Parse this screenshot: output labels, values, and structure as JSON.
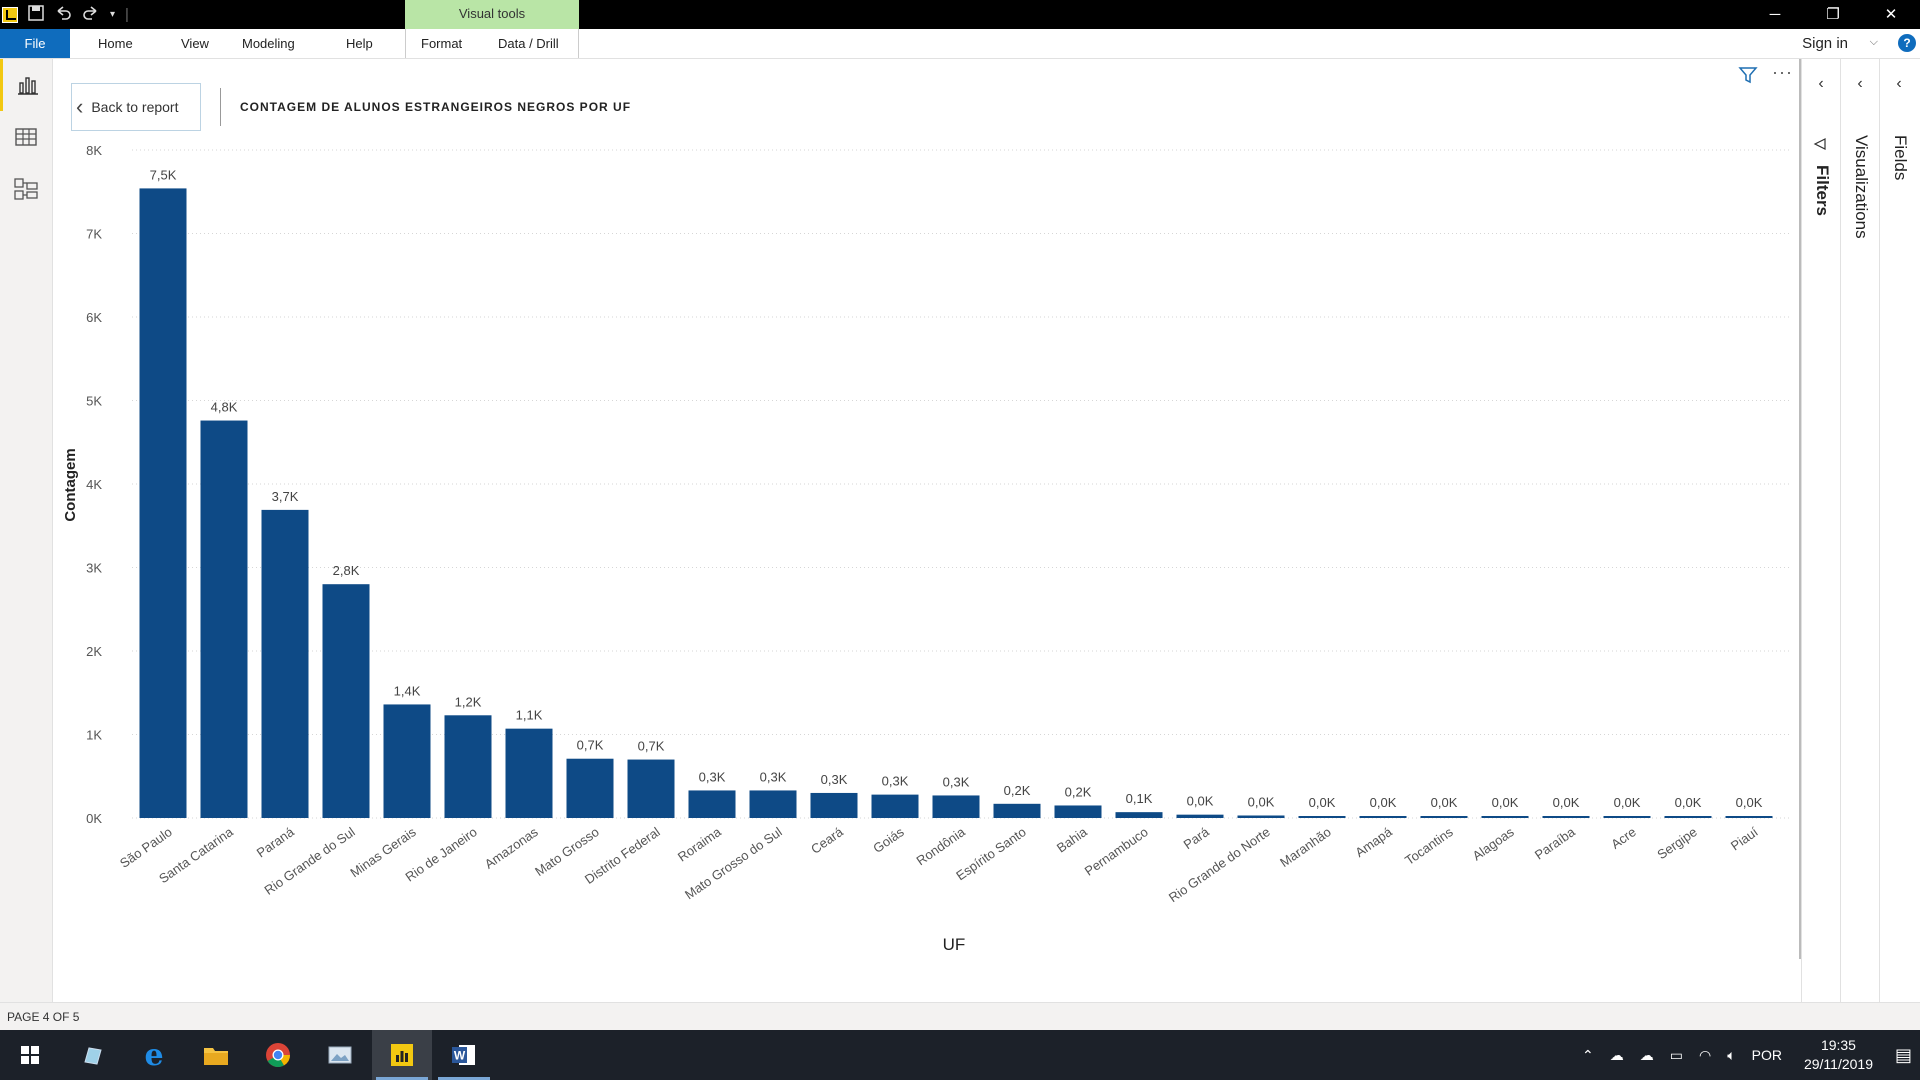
{
  "titlebar": {
    "contextual_tab": "Visual tools",
    "qat_icons": [
      "powerbi-logo-icon",
      "save-icon",
      "undo-icon",
      "redo-icon",
      "customize-icon"
    ],
    "window_controls": [
      "minimize-icon",
      "restore-icon",
      "close-icon"
    ]
  },
  "ribbon": {
    "file": "File",
    "tabs": [
      "Home",
      "View",
      "Modeling",
      "Help",
      "Format",
      "Data / Drill"
    ],
    "sign_in": "Sign in"
  },
  "left_rail": {
    "items": [
      "report-view-icon",
      "data-view-icon",
      "model-view-icon"
    ]
  },
  "visual_header": {
    "back_label": "Back to report",
    "title": "CONTAGEM DE ALUNOS ESTRANGEIROS NEGROS POR UF"
  },
  "panes": {
    "filters": "Filters",
    "visualizations": "Visualizations",
    "fields": "Fields"
  },
  "status": {
    "page": "PAGE 4 OF 5"
  },
  "taskbar": {
    "apps": [
      "windows-start-icon",
      "taskview-icon",
      "edge-icon",
      "file-explorer-icon",
      "chrome-icon",
      "photos-icon",
      "powerbi-icon",
      "word-icon"
    ],
    "lang": "POR",
    "time": "19:35",
    "date": "29/11/2019"
  },
  "colors": {
    "bar": "#0e4a86",
    "file_tab": "#0f6cbd",
    "contextual_tab": "#b9e5a6",
    "rail_active": "#f2c811"
  },
  "chart_data": {
    "type": "bar",
    "title": "CONTAGEM DE ALUNOS ESTRANGEIROS NEGROS POR UF",
    "xlabel": "UF",
    "ylabel": "Contagem",
    "ylim": [
      0,
      8000
    ],
    "yticks": [
      "0K",
      "1K",
      "2K",
      "3K",
      "4K",
      "5K",
      "6K",
      "7K",
      "8K"
    ],
    "grid": true,
    "categories": [
      "São Paulo",
      "Santa Catarina",
      "Paraná",
      "Rio Grande do Sul",
      "Minas Gerais",
      "Rio de Janeiro",
      "Amazonas",
      "Mato Grosso",
      "Distrito Federal",
      "Roraima",
      "Mato Grosso do Sul",
      "Ceará",
      "Goiás",
      "Rondônia",
      "Espírito Santo",
      "Bahia",
      "Pernambuco",
      "Pará",
      "Rio Grande do Norte",
      "Maranhão",
      "Amapá",
      "Tocantins",
      "Alagoas",
      "Paraíba",
      "Acre",
      "Sergipe",
      "Piauí"
    ],
    "values": [
      7540,
      4760,
      3690,
      2800,
      1360,
      1230,
      1070,
      710,
      700,
      330,
      330,
      300,
      280,
      270,
      170,
      150,
      70,
      40,
      30,
      20,
      20,
      20,
      10,
      10,
      10,
      10,
      10
    ],
    "data_labels": [
      "7,5K",
      "4,8K",
      "3,7K",
      "2,8K",
      "1,4K",
      "1,2K",
      "1,1K",
      "0,7K",
      "0,7K",
      "0,3K",
      "0,3K",
      "0,3K",
      "0,3K",
      "0,3K",
      "0,2K",
      "0,2K",
      "0,1K",
      "0,0K",
      "0,0K",
      "0,0K",
      "0,0K",
      "0,0K",
      "0,0K",
      "0,0K",
      "0,0K",
      "0,0K",
      "0,0K"
    ]
  }
}
